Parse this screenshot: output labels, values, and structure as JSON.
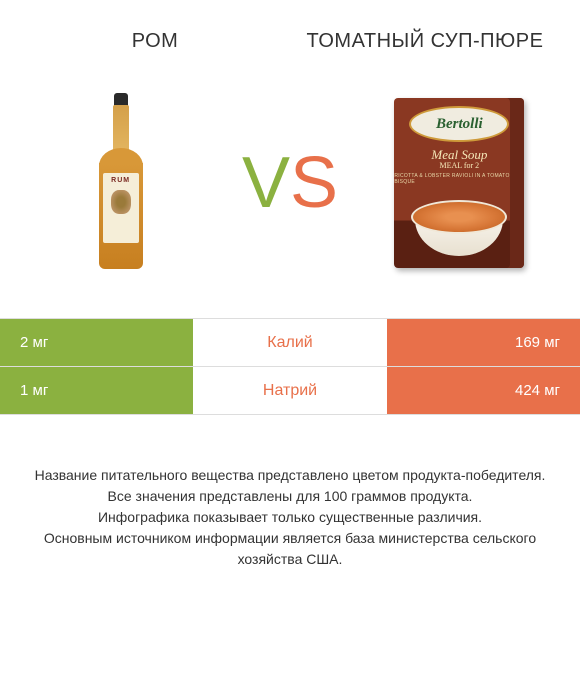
{
  "header": {
    "left_title": "РОМ",
    "right_title": "ТОМАТНЫЙ СУП-ПЮРЕ"
  },
  "vs": {
    "v": "V",
    "s": "S"
  },
  "products": {
    "rum_label": "RUM",
    "soup_brand": "Bertolli",
    "soup_title_line1": "Meal Soup",
    "soup_title_line2": "MEAL for 2",
    "soup_sub": "RICOTTA & LOBSTER RAVIOLI IN A TOMATO BISQUE"
  },
  "colors": {
    "left_bg": "#8bb140",
    "right_bg": "#e8704a",
    "center_text": "#e8704a",
    "cell_text": "#ffffff",
    "page_bg": "#ffffff",
    "footer_text": "#333333",
    "border": "#dddddd"
  },
  "table": {
    "rows": [
      {
        "left": "2 мг",
        "label": "Калий",
        "right": "169 мг",
        "winner": "right"
      },
      {
        "left": "1 мг",
        "label": "Натрий",
        "right": "424 мг",
        "winner": "right"
      }
    ]
  },
  "footer": {
    "lines": [
      "Название питательного вещества представлено цветом продукта-победителя.",
      "Все значения представлены для 100 граммов продукта.",
      "Инфографика показывает только существенные различия.",
      "Основным источником информации является база министерства сельского хозяйства США."
    ]
  }
}
